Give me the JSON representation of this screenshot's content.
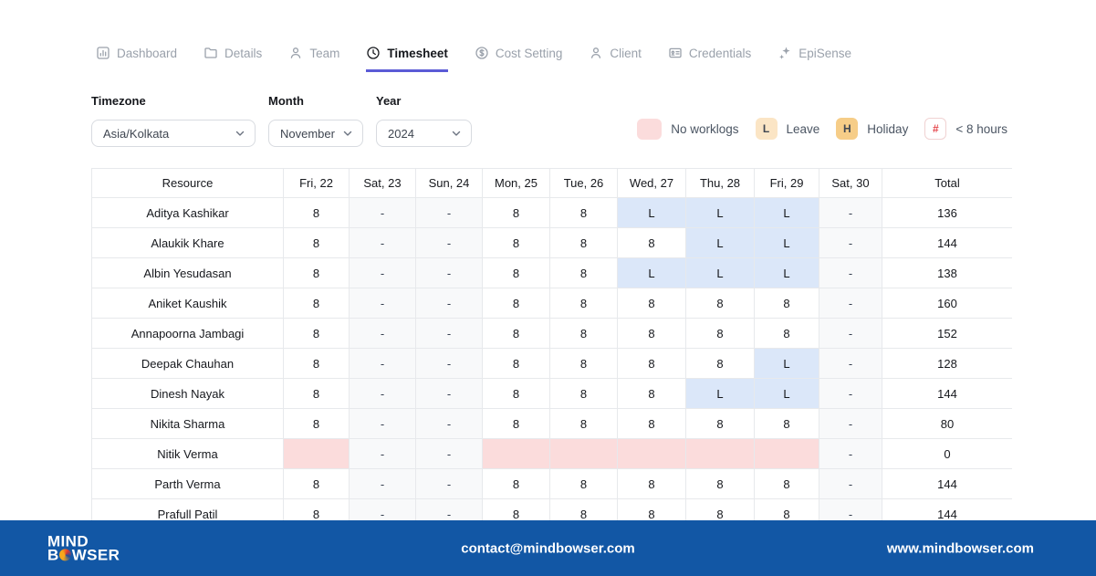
{
  "tabs": [
    {
      "label": "Dashboard",
      "icon": "dashboard-icon",
      "active": false
    },
    {
      "label": "Details",
      "icon": "folder-icon",
      "active": false
    },
    {
      "label": "Team",
      "icon": "team-icon",
      "active": false
    },
    {
      "label": "Timesheet",
      "icon": "clock-icon",
      "active": true
    },
    {
      "label": "Cost Setting",
      "icon": "dollar-icon",
      "active": false
    },
    {
      "label": "Client",
      "icon": "person-icon",
      "active": false
    },
    {
      "label": "Credentials",
      "icon": "id-card-icon",
      "active": false
    },
    {
      "label": "EpiSense",
      "icon": "sparkle-icon",
      "active": false
    }
  ],
  "filters": {
    "timezone_label": "Timezone",
    "timezone_value": "Asia/Kolkata",
    "month_label": "Month",
    "month_value": "November",
    "year_label": "Year",
    "year_value": "2024"
  },
  "legend": {
    "no_worklogs_label": "No worklogs",
    "leave_letter": "L",
    "leave_label": "Leave",
    "holiday_letter": "H",
    "holiday_label": "Holiday",
    "hash_symbol": "#",
    "lt8_label": "< 8 hours"
  },
  "table": {
    "columns": [
      "Resource",
      "Fri, 22",
      "Sat, 23",
      "Sun, 24",
      "Mon, 25",
      "Tue, 26",
      "Wed, 27",
      "Thu, 28",
      "Fri, 29",
      "Sat, 30",
      "Total"
    ],
    "weekend_day_indices": [
      1,
      2,
      8
    ],
    "rows": [
      {
        "name": "Aditya Kashikar",
        "cells": [
          "8",
          "-",
          "-",
          "8",
          "8",
          "L",
          "L",
          "L",
          "-"
        ],
        "total": "136"
      },
      {
        "name": "Alaukik Khare",
        "cells": [
          "8",
          "-",
          "-",
          "8",
          "8",
          "8",
          "L",
          "L",
          "-"
        ],
        "total": "144"
      },
      {
        "name": "Albin Yesudasan",
        "cells": [
          "8",
          "-",
          "-",
          "8",
          "8",
          "L",
          "L",
          "L",
          "-"
        ],
        "total": "138"
      },
      {
        "name": "Aniket Kaushik",
        "cells": [
          "8",
          "-",
          "-",
          "8",
          "8",
          "8",
          "8",
          "8",
          "-"
        ],
        "total": "160"
      },
      {
        "name": "Annapoorna Jambagi",
        "cells": [
          "8",
          "-",
          "-",
          "8",
          "8",
          "8",
          "8",
          "8",
          "-"
        ],
        "total": "152"
      },
      {
        "name": "Deepak Chauhan",
        "cells": [
          "8",
          "-",
          "-",
          "8",
          "8",
          "8",
          "8",
          "L",
          "-"
        ],
        "total": "128"
      },
      {
        "name": "Dinesh Nayak",
        "cells": [
          "8",
          "-",
          "-",
          "8",
          "8",
          "8",
          "L",
          "L",
          "-"
        ],
        "total": "144"
      },
      {
        "name": "Nikita Sharma",
        "cells": [
          "8",
          "-",
          "-",
          "8",
          "8",
          "8",
          "8",
          "8",
          "-"
        ],
        "total": "80"
      },
      {
        "name": "Nitik Verma",
        "cells": [
          "",
          "-",
          "-",
          "",
          "",
          "",
          "",
          "",
          "-"
        ],
        "total": "0"
      },
      {
        "name": "Parth Verma",
        "cells": [
          "8",
          "-",
          "-",
          "8",
          "8",
          "8",
          "8",
          "8",
          "-"
        ],
        "total": "144"
      },
      {
        "name": "Prafull Patil",
        "cells": [
          "8",
          "-",
          "-",
          "8",
          "8",
          "8",
          "8",
          "8",
          "-"
        ],
        "total": "144"
      }
    ]
  },
  "footer": {
    "logo_line1": "MIND",
    "logo_line2_prefix": "B",
    "logo_line2_suffix": "WSER",
    "email": "contact@mindbowser.com",
    "website": "www.mindbowser.com"
  },
  "colors": {
    "accent_underline": "#5b5bd6",
    "no_worklog_pink": "#fbdcdc",
    "leave_cell_blue": "#dbe7f9",
    "leave_badge_peach": "#fbe5c5",
    "holiday_orange": "#f6cd88",
    "hash_red": "#e5484d",
    "footer_blue": "#1257a5"
  }
}
